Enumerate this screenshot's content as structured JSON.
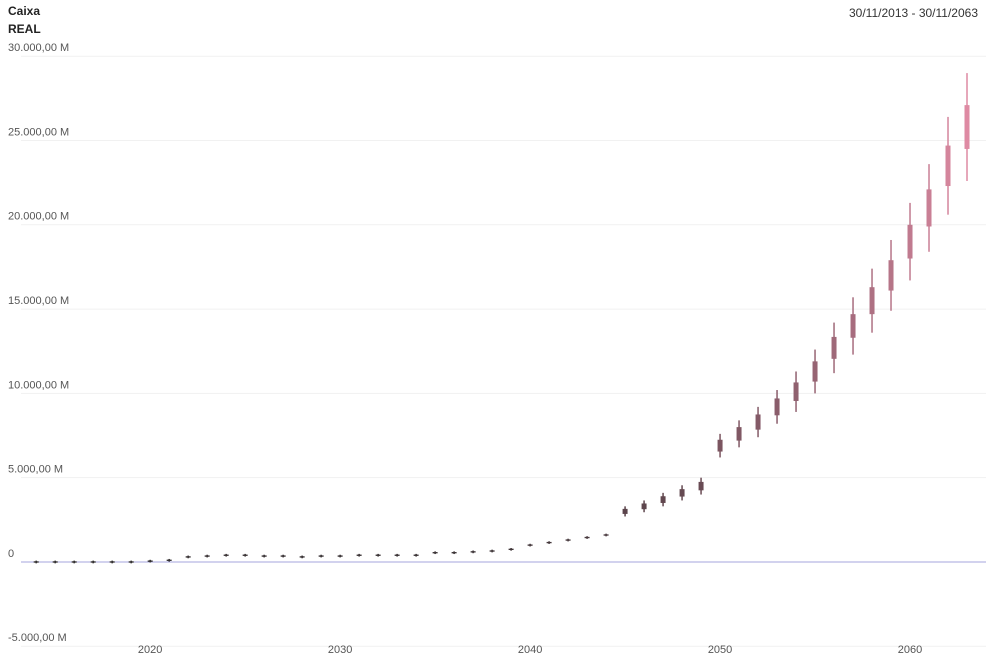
{
  "chart_data": {
    "type": "box",
    "title": "Caixa",
    "subtitle": "REAL",
    "date_range": "30/11/2013 - 30/11/2063",
    "x": [
      2014,
      2015,
      2016,
      2017,
      2018,
      2019,
      2020,
      2021,
      2022,
      2023,
      2024,
      2025,
      2026,
      2027,
      2028,
      2029,
      2030,
      2031,
      2032,
      2033,
      2034,
      2035,
      2036,
      2037,
      2038,
      2039,
      2040,
      2041,
      2042,
      2043,
      2044,
      2045,
      2046,
      2047,
      2048,
      2049,
      2050,
      2051,
      2052,
      2053,
      2054,
      2055,
      2056,
      2057,
      2058,
      2059,
      2060,
      2061,
      2062,
      2063
    ],
    "low": [
      -80,
      -80,
      -80,
      -80,
      -80,
      -80,
      -30,
      20,
      220,
      270,
      320,
      320,
      270,
      270,
      220,
      270,
      270,
      320,
      320,
      320,
      320,
      470,
      470,
      520,
      570,
      670,
      920,
      1070,
      1220,
      1370,
      1520,
      2700,
      2950,
      3300,
      3650,
      4000,
      6200,
      6800,
      7400,
      8200,
      8900,
      10000,
      11200,
      12300,
      13600,
      14900,
      16700,
      18400,
      20600,
      22600
    ],
    "q1": [
      -40,
      -40,
      -40,
      -40,
      -40,
      -40,
      10,
      60,
      260,
      310,
      360,
      360,
      310,
      310,
      260,
      310,
      310,
      360,
      360,
      360,
      360,
      510,
      510,
      560,
      610,
      710,
      960,
      1110,
      1260,
      1410,
      1560,
      2850,
      3130,
      3500,
      3880,
      4250,
      6550,
      7200,
      7850,
      8700,
      9550,
      10700,
      12050,
      13300,
      14700,
      16100,
      18000,
      19900,
      22300,
      24500
    ],
    "q3": [
      40,
      40,
      40,
      40,
      40,
      40,
      90,
      140,
      340,
      390,
      440,
      440,
      390,
      390,
      340,
      390,
      390,
      440,
      440,
      440,
      440,
      590,
      590,
      640,
      690,
      790,
      1040,
      1190,
      1340,
      1490,
      1640,
      3150,
      3470,
      3900,
      4320,
      4750,
      7250,
      8000,
      8750,
      9700,
      10650,
      11900,
      13350,
      14700,
      16300,
      17900,
      20000,
      22100,
      24700,
      27100
    ],
    "high": [
      80,
      80,
      80,
      80,
      80,
      80,
      130,
      180,
      380,
      430,
      480,
      480,
      430,
      430,
      380,
      430,
      430,
      480,
      480,
      480,
      480,
      630,
      630,
      680,
      730,
      830,
      1080,
      1230,
      1380,
      1530,
      1680,
      3300,
      3650,
      4100,
      4550,
      5000,
      7600,
      8400,
      9200,
      10200,
      11300,
      12600,
      14200,
      15700,
      17400,
      19100,
      21300,
      23600,
      26400,
      29000
    ],
    "xlim": [
      2013.2,
      2064
    ],
    "xticks": [
      2020,
      2030,
      2040,
      2050,
      2060
    ],
    "ylim": [
      -5500,
      32000
    ],
    "yticks": [
      {
        "value": -5000,
        "label": "-5.000,00 M"
      },
      0,
      {
        "value": 5000,
        "label": "5.000,00 M"
      },
      {
        "value": 10000,
        "label": "10.000,00 M"
      },
      {
        "value": 15000,
        "label": "15.000,00 M"
      },
      {
        "value": 20000,
        "label": "20.000,00 M"
      },
      {
        "value": 25000,
        "label": "25.000,00 M"
      },
      {
        "value": 30000,
        "label": "30.000,00 M"
      }
    ],
    "grid": true,
    "grid_color": "#f1f1f1",
    "zero_color": "#a4a4dc",
    "colors": [
      "#2a2a2a",
      "#de8aa3"
    ]
  }
}
